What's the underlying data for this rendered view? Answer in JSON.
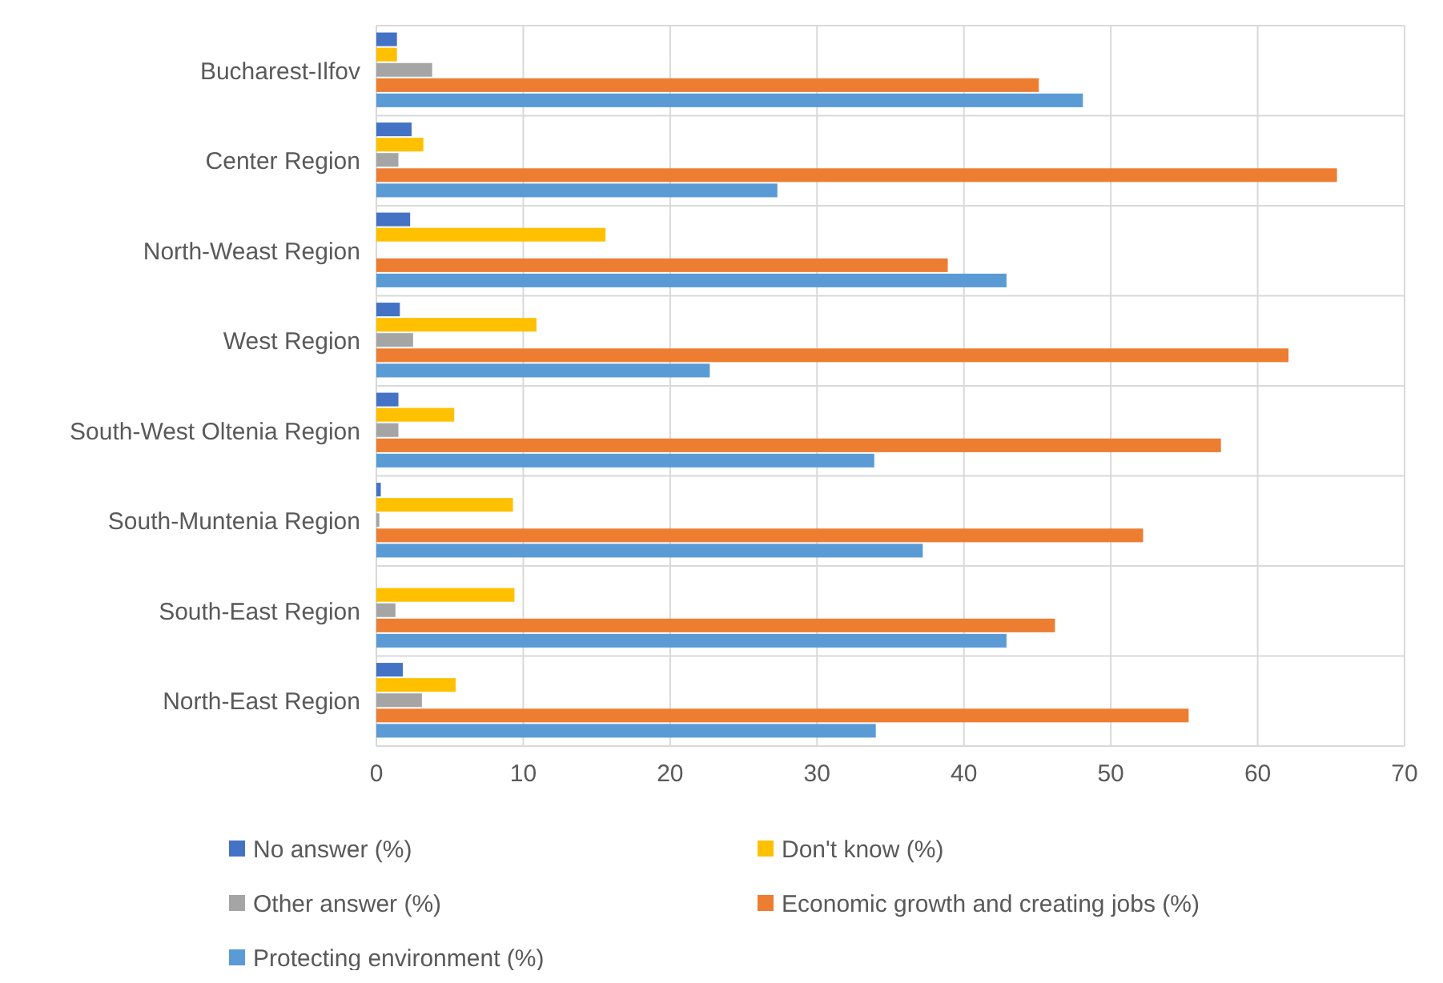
{
  "chart_data": {
    "type": "bar",
    "orientation": "horizontal",
    "categories": [
      "Bucharest-Ilfov",
      "Center Region",
      "North-Weast Region",
      "West Region",
      "South-West Oltenia Region",
      "South-Muntenia Region",
      "South-East Region",
      "North-East Region"
    ],
    "series": [
      {
        "name": "No answer (%)",
        "color": "#4472c4",
        "values": [
          1.4,
          2.4,
          2.3,
          1.6,
          1.5,
          0.3,
          0,
          1.8
        ]
      },
      {
        "name": "Don't know (%)",
        "color": "#ffc000",
        "values": [
          1.4,
          3.2,
          15.6,
          10.9,
          5.3,
          9.3,
          9.4,
          5.4
        ]
      },
      {
        "name": "Other answer (%)",
        "color": "#a5a5a5",
        "values": [
          3.8,
          1.5,
          0,
          2.5,
          1.5,
          0.2,
          1.3,
          3.1
        ]
      },
      {
        "name": "Economic growth and creating jobs (%)",
        "color": "#ed7d31",
        "values": [
          45.1,
          65.4,
          38.9,
          62.1,
          57.5,
          52.2,
          46.2,
          55.3
        ]
      },
      {
        "name": "Protecting environment (%)",
        "color": "#5b9bd5",
        "values": [
          48.1,
          27.3,
          42.9,
          22.7,
          33.9,
          37.2,
          42.9,
          34.0
        ]
      }
    ],
    "xlim": [
      0,
      70
    ],
    "xticks": [
      0,
      10,
      20,
      30,
      40,
      50,
      60,
      70
    ],
    "grid": "x",
    "legend": "bottom"
  }
}
